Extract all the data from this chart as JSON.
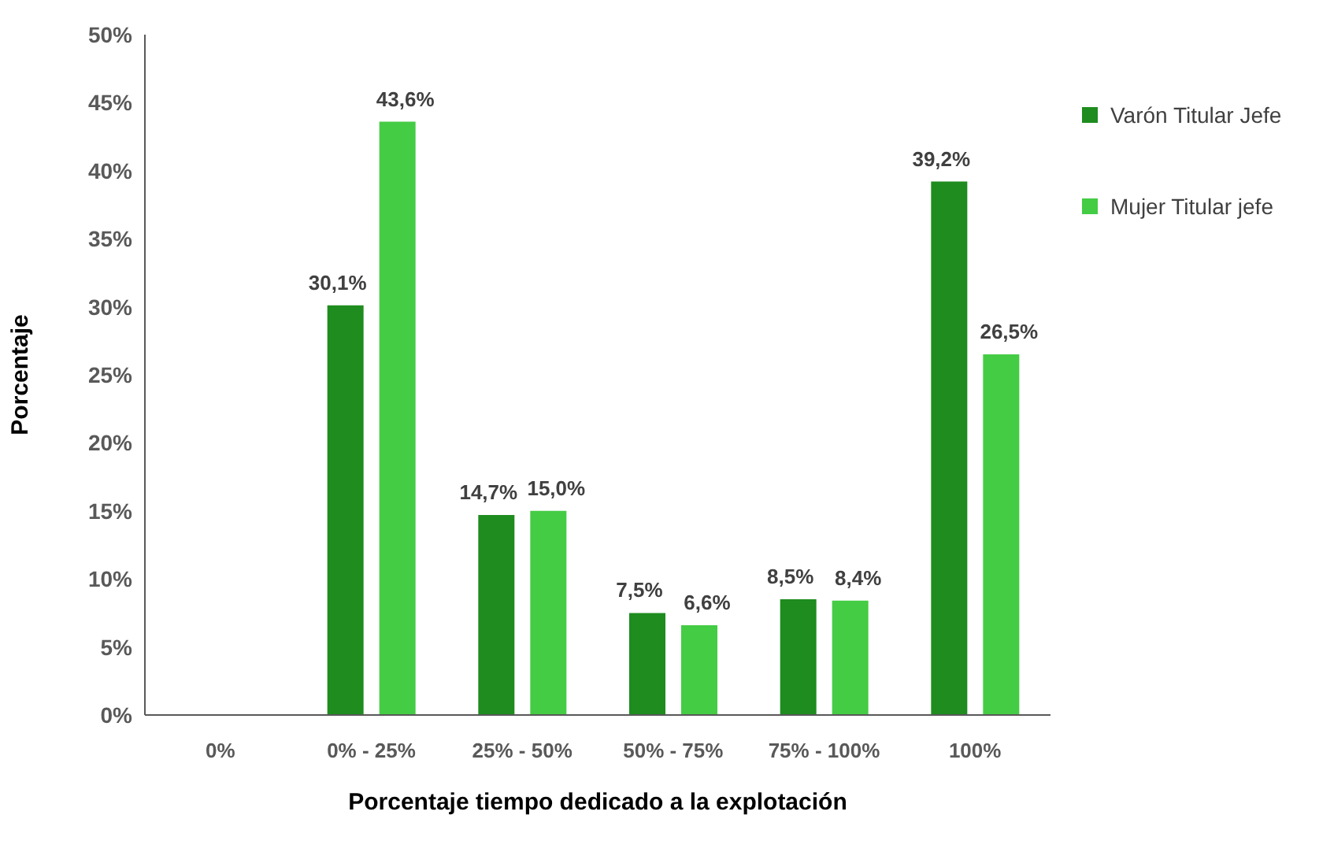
{
  "chart_data": {
    "type": "bar",
    "xlabel": "Porcentaje tiempo dedicado a la explotación",
    "ylabel": "Porcentaje",
    "categories": [
      "0%",
      "0% - 25%",
      "25% - 50%",
      "50% - 75%",
      "75% - 100%",
      "100%"
    ],
    "series": [
      {
        "name": "Varón Titular Jefe",
        "color": "#1e8c1e",
        "values": [
          null,
          30.1,
          14.7,
          7.5,
          8.5,
          39.2
        ],
        "value_labels": [
          null,
          "30,1%",
          "14,7%",
          "7,5%",
          "8,5%",
          "39,2%"
        ]
      },
      {
        "name": "Mujer Titular jefe",
        "color": "#44cc44",
        "values": [
          null,
          43.6,
          15.0,
          6.6,
          8.4,
          26.5
        ],
        "value_labels": [
          null,
          "43,6%",
          "15,0%",
          "6,6%",
          "8,4%",
          "26,5%"
        ]
      }
    ],
    "ylim": [
      0,
      50
    ],
    "yticks": [
      {
        "value": 0,
        "label": "0%"
      },
      {
        "value": 5,
        "label": "5%"
      },
      {
        "value": 10,
        "label": "10%"
      },
      {
        "value": 15,
        "label": "15%"
      },
      {
        "value": 20,
        "label": "20%"
      },
      {
        "value": 25,
        "label": "25%"
      },
      {
        "value": 30,
        "label": "30%"
      },
      {
        "value": 35,
        "label": "35%"
      },
      {
        "value": 40,
        "label": "40%"
      },
      {
        "value": 45,
        "label": "45%"
      },
      {
        "value": 50,
        "label": "50%"
      }
    ],
    "legend": "right",
    "grid": false
  }
}
